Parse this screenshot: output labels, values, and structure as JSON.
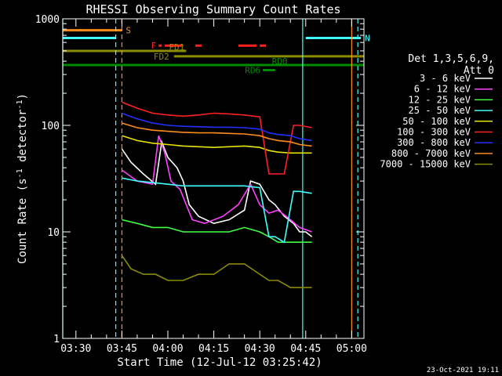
{
  "chart_data": {
    "type": "line",
    "title": "RHESSI Observing Summary Count Rates",
    "xlabel": "Start Time (12-Jul-12 03:25:42)",
    "ylabel": "Count Rate (s⁻¹ detector⁻¹)",
    "ylabel_main": "Count Rate (s",
    "ylabel_sup1": "-1",
    "ylabel_mid": " detector",
    "ylabel_sup2": "-1",
    "ylabel_end": ")",
    "yscale": "log",
    "ylim": [
      1,
      1000
    ],
    "xlim_minutes": [
      "03:25:42",
      "05:04:00"
    ],
    "x_ticks": [
      "03:30",
      "03:45",
      "04:00",
      "04:15",
      "04:30",
      "04:45",
      "05:00"
    ],
    "y_ticks": [
      "1",
      "10",
      "100",
      "1000"
    ],
    "footer_date": "23-Oct-2021 19:11",
    "legend_header": [
      "Det 1,3,5,6,9,",
      "Att 0"
    ],
    "series": [
      {
        "name": "3 - 6 keV",
        "color": "#ffffff",
        "x": [
          "03:45",
          "03:48",
          "03:52",
          "03:56",
          "03:58",
          "04:00",
          "04:03",
          "04:05",
          "04:07",
          "04:10",
          "04:15",
          "04:20",
          "04:25",
          "04:27",
          "04:30",
          "04:33",
          "04:35",
          "04:38",
          "04:41",
          "04:43",
          "04:45",
          "04:47"
        ],
        "y": [
          60,
          45,
          35,
          28,
          70,
          50,
          40,
          30,
          18,
          14,
          12,
          13,
          16,
          30,
          28,
          20,
          18,
          14,
          12,
          10,
          10,
          9
        ]
      },
      {
        "name": "6 - 12 keV",
        "color": "#ff40ff",
        "x": [
          "03:45",
          "03:50",
          "03:55",
          "03:57",
          "03:59",
          "04:01",
          "04:04",
          "04:06",
          "04:08",
          "04:12",
          "04:18",
          "04:23",
          "04:27",
          "04:30",
          "04:33",
          "04:36",
          "04:40",
          "04:43",
          "04:47"
        ],
        "y": [
          38,
          30,
          28,
          80,
          55,
          30,
          25,
          18,
          13,
          12,
          14,
          18,
          28,
          18,
          15,
          16,
          13,
          11,
          10
        ]
      },
      {
        "name": "12 - 25 keV",
        "color": "#40ff40",
        "x": [
          "03:45",
          "03:50",
          "03:55",
          "04:00",
          "04:05",
          "04:10",
          "04:15",
          "04:20",
          "04:25",
          "04:30",
          "04:33",
          "04:36",
          "04:40",
          "04:43",
          "04:47"
        ],
        "y": [
          13,
          12,
          11,
          11,
          10,
          10,
          10,
          10,
          11,
          10,
          9,
          8,
          8,
          8,
          8
        ]
      },
      {
        "name": "25 - 50 keV",
        "color": "#40ffff",
        "x": [
          "03:45",
          "03:50",
          "03:55",
          "04:00",
          "04:05",
          "04:10",
          "04:15",
          "04:20",
          "04:25",
          "04:30",
          "04:33",
          "04:35",
          "04:38",
          "04:41",
          "04:43",
          "04:47"
        ],
        "y": [
          32,
          30,
          29,
          28,
          27,
          27,
          27,
          27,
          27,
          26,
          9,
          9,
          8,
          24,
          24,
          23
        ]
      },
      {
        "name": "50 - 100 keV",
        "color": "#e6e600",
        "x": [
          "03:45",
          "03:50",
          "03:55",
          "04:00",
          "04:05",
          "04:10",
          "04:15",
          "04:20",
          "04:25",
          "04:30",
          "04:33",
          "04:36",
          "04:40",
          "04:43",
          "04:47"
        ],
        "y": [
          80,
          72,
          68,
          66,
          64,
          63,
          62,
          63,
          64,
          62,
          58,
          56,
          55,
          55,
          55
        ]
      },
      {
        "name": "100 - 300 keV",
        "color": "#ff2020",
        "x": [
          "03:45",
          "03:50",
          "03:55",
          "04:00",
          "04:05",
          "04:10",
          "04:15",
          "04:20",
          "04:25",
          "04:30",
          "04:33",
          "04:35",
          "04:38",
          "04:41",
          "04:43",
          "04:47"
        ],
        "y": [
          165,
          145,
          130,
          125,
          122,
          125,
          130,
          128,
          125,
          120,
          35,
          35,
          35,
          100,
          100,
          95
        ]
      },
      {
        "name": "300 - 800 keV",
        "color": "#2030ff",
        "x": [
          "03:45",
          "03:50",
          "03:55",
          "04:00",
          "04:05",
          "04:10",
          "04:15",
          "04:20",
          "04:25",
          "04:30",
          "04:33",
          "04:36",
          "04:40",
          "04:43",
          "04:47"
        ],
        "y": [
          130,
          115,
          105,
          100,
          98,
          97,
          96,
          96,
          95,
          92,
          85,
          82,
          80,
          75,
          72
        ]
      },
      {
        "name": "800 - 7000 keV",
        "color": "#ff8c1a",
        "x": [
          "03:45",
          "03:50",
          "03:55",
          "04:00",
          "04:05",
          "04:10",
          "04:15",
          "04:20",
          "04:25",
          "04:30",
          "04:33",
          "04:36",
          "04:40",
          "04:43",
          "04:47"
        ],
        "y": [
          105,
          95,
          90,
          88,
          86,
          85,
          85,
          84,
          83,
          80,
          75,
          72,
          70,
          66,
          64
        ]
      },
      {
        "name": "7000 - 15000 keV",
        "color": "#8c8c00",
        "x": [
          "03:45",
          "03:48",
          "03:52",
          "03:56",
          "04:00",
          "04:05",
          "04:10",
          "04:15",
          "04:20",
          "04:25",
          "04:30",
          "04:33",
          "04:36",
          "04:40",
          "04:43",
          "04:47"
        ],
        "y": [
          6,
          4.5,
          4,
          4,
          3.5,
          3.5,
          4,
          4,
          5,
          5,
          4,
          3.5,
          3.5,
          3,
          3,
          3
        ]
      }
    ],
    "flags": [
      {
        "label": "S",
        "color": "#ff8c1a",
        "segments": [
          [
            "03:25:42",
            "03:45"
          ]
        ],
        "level": 780
      },
      {
        "label": "N",
        "color": "#40ffff",
        "segments": [
          [
            "03:25:42",
            "03:43"
          ],
          [
            "04:45",
            "05:03"
          ]
        ],
        "level": 660
      },
      {
        "label": "F",
        "color": "#ff2020",
        "segments": [
          [
            "03:57",
            "03:58"
          ],
          [
            "03:59",
            "04:05"
          ],
          [
            "04:09",
            "04:11"
          ],
          [
            "04:23",
            "04:29"
          ],
          [
            "04:30",
            "04:32"
          ]
        ],
        "level": 560
      },
      {
        "label": "FD1",
        "color": "#8c8c00",
        "segments": [
          [
            "03:25:42",
            "04:06"
          ]
        ],
        "level": 500
      },
      {
        "label": "FD2",
        "color": "#8c8c00",
        "segments": [
          [
            "04:02",
            "05:04"
          ]
        ],
        "level": 445
      },
      {
        "label": "RD0",
        "color": "#008c00",
        "segments": [
          [
            "03:25:42",
            "05:04"
          ]
        ],
        "level": 368
      },
      {
        "label": "RD6",
        "color": "#008c00",
        "segments": [
          [
            "04:31",
            "04:35"
          ]
        ],
        "level": 330
      }
    ],
    "vlines": [
      {
        "x": "03:25:42",
        "color": "#40ffff",
        "style": "solid"
      },
      {
        "x": "03:43",
        "color": "#40ffff",
        "style": "dashed"
      },
      {
        "x": "03:45",
        "color": "#ff8c1a",
        "style": "dashed"
      },
      {
        "x": "04:44",
        "color": "#40ffff",
        "style": "solid"
      },
      {
        "x": "05:00",
        "color": "#ff8c1a",
        "style": "solid"
      },
      {
        "x": "05:02",
        "color": "#40ffff",
        "style": "dashed"
      }
    ]
  }
}
